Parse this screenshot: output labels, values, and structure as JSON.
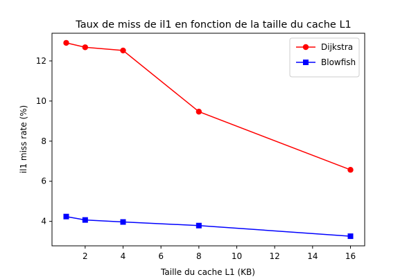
{
  "chart_data": {
    "type": "line",
    "title": "Taux de miss de il1 en fonction de la taille du cache L1",
    "xlabel": "Taille du cache L1 (KB)",
    "ylabel": "il1 miss rate (%)",
    "xlim": [
      0.25,
      16.75
    ],
    "ylim": [
      2.78,
      13.38
    ],
    "xticks": [
      2,
      4,
      6,
      8,
      10,
      12,
      14,
      16
    ],
    "yticks": [
      4,
      6,
      8,
      10,
      12
    ],
    "grid": false,
    "legend_position": "top-right",
    "x": [
      1,
      2,
      4,
      8,
      16
    ],
    "series": [
      {
        "name": "Dijkstra",
        "color": "#ff0000",
        "marker": "circle",
        "values": [
          12.9,
          12.68,
          12.52,
          9.47,
          6.57
        ]
      },
      {
        "name": "Blowfish",
        "color": "#0000ff",
        "marker": "square",
        "values": [
          4.24,
          4.07,
          3.97,
          3.79,
          3.26
        ]
      }
    ]
  }
}
